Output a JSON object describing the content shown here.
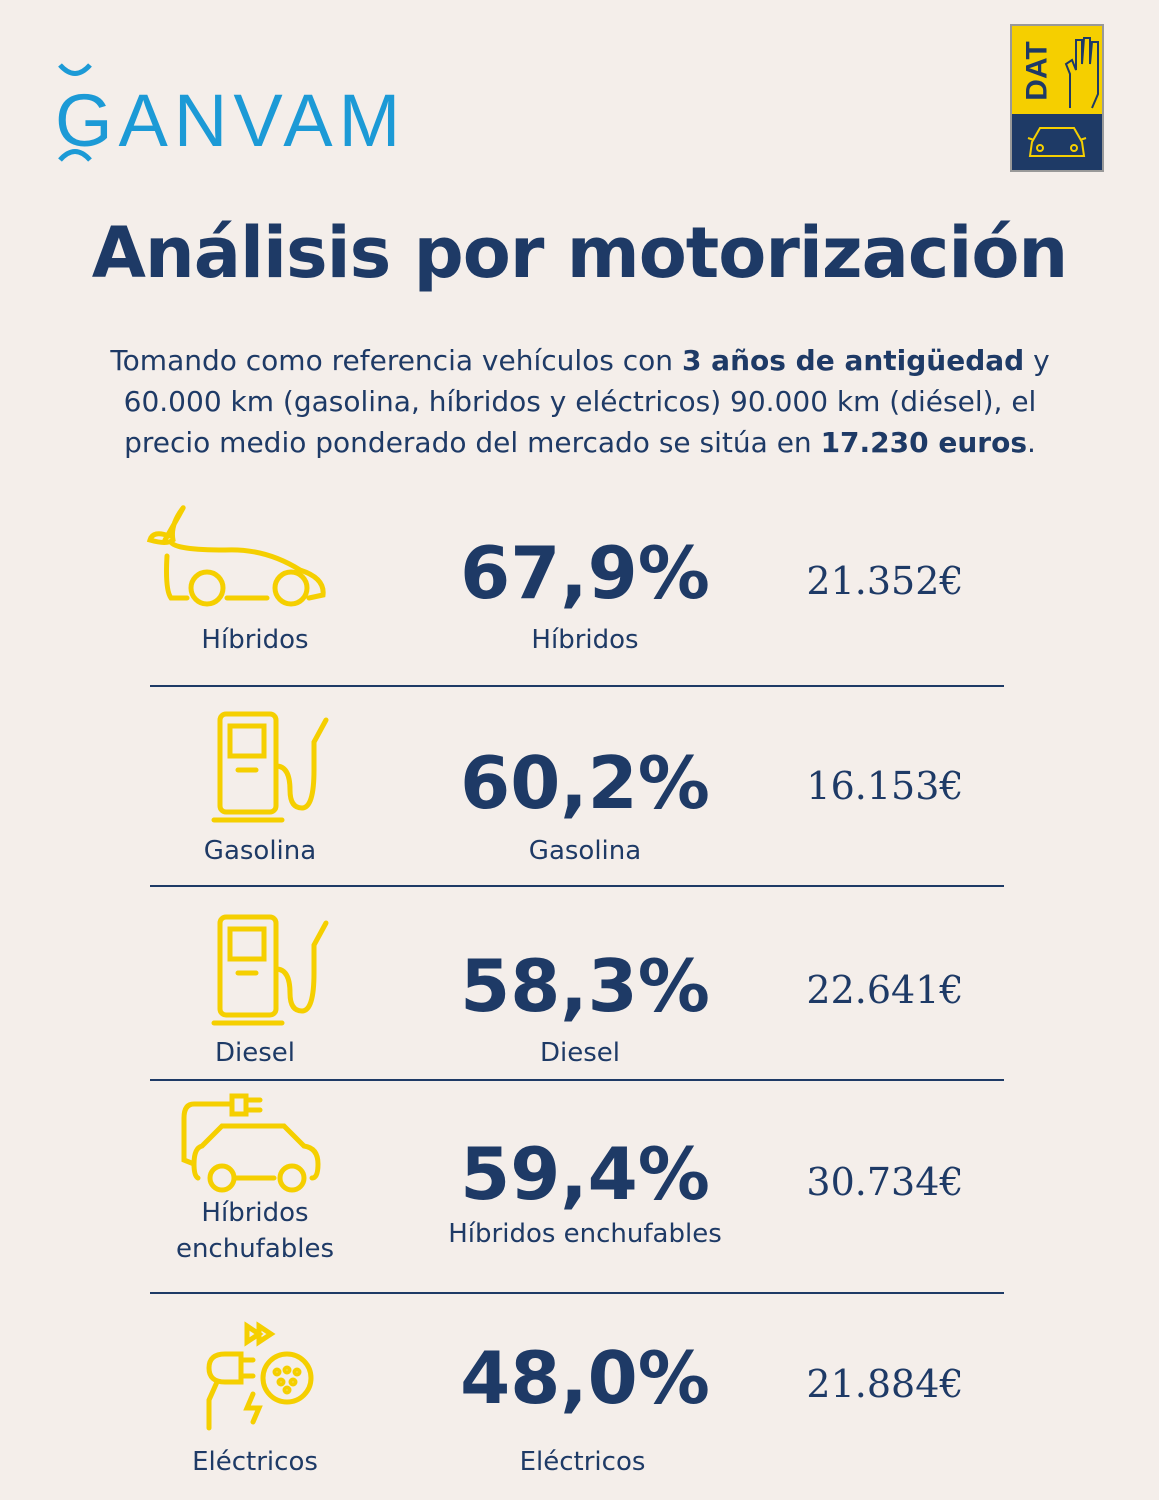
{
  "brand": {
    "left_logo": "GANVAM",
    "right_logo": "DAT"
  },
  "colors": {
    "background": "#f4eeea",
    "navy": "#1e3a66",
    "yellow": "#f5cf00",
    "ganvam_blue": "#1c9ad6"
  },
  "title": "Análisis por motorización",
  "intro": {
    "p1": "Tomando como referencia vehículos con ",
    "b1": "3 años de antigüedad",
    "p2": " y 60.000 km (gasolina, híbridos y eléctricos) 90.000 km (diésel), el precio medio ponderado del mercado se sitúa en ",
    "b2": "17.230 euros",
    "p3": "."
  },
  "rows": [
    {
      "icon": "hybrid-car-leaf-icon",
      "icon_label": "Híbridos",
      "percent": "67,9%",
      "percent_label": "Híbridos",
      "price": "21.352€"
    },
    {
      "icon": "fuel-pump-icon",
      "icon_label": "Gasolina",
      "percent": "60,2%",
      "percent_label": "Gasolina",
      "price": "16.153€"
    },
    {
      "icon": "fuel-pump-icon",
      "icon_label": "Diesel",
      "percent": "58,3%",
      "percent_label": "Diesel",
      "price": "22.641€"
    },
    {
      "icon": "plug-in-car-icon",
      "icon_label_1": "Híbridos",
      "icon_label_2": "enchufables",
      "percent": "59,4%",
      "percent_label": "Híbridos enchufables",
      "price": "30.734€"
    },
    {
      "icon": "ev-charger-icon",
      "icon_label": "Eléctricos",
      "percent": "48,0%",
      "percent_label": "Eléctricos",
      "price": "21.884€"
    }
  ]
}
